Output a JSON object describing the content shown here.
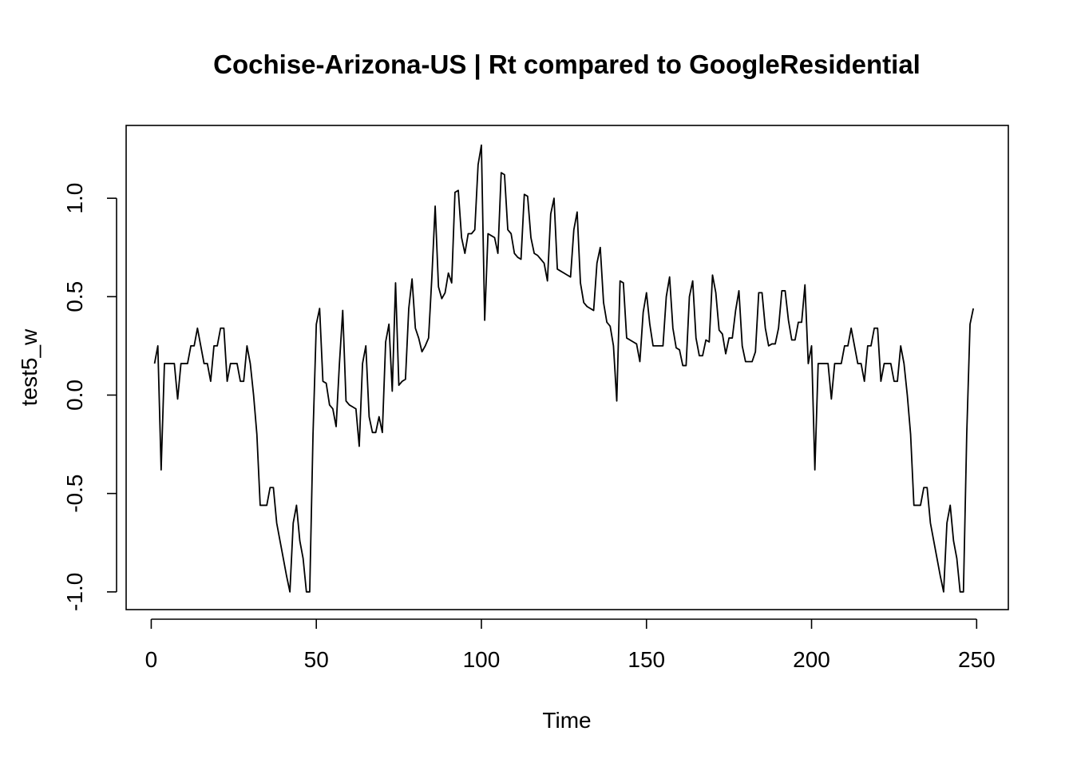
{
  "chart_data": {
    "type": "line",
    "title": "Cochise-Arizona-US | Rt compared to GoogleResidential",
    "xlabel": "Time",
    "ylabel": "test5_w",
    "xlim": [
      -7.6,
      259.6
    ],
    "ylim": [
      -1.09,
      1.37
    ],
    "x_ticks": [
      0,
      50,
      100,
      150,
      200,
      250
    ],
    "x_tick_labels": [
      "0",
      "50",
      "100",
      "150",
      "200",
      "250"
    ],
    "y_ticks": [
      -1.0,
      -0.5,
      0.0,
      0.5,
      1.0
    ],
    "y_tick_labels": [
      "-1.0",
      "-0.5",
      "0.0",
      "0.5",
      "1.0"
    ],
    "grid": false,
    "legend": "none",
    "line_color": "#000000",
    "series": [
      {
        "x_start": 1,
        "values": [
          0.16,
          0.25,
          -0.38,
          0.16,
          0.16,
          0.16,
          0.16,
          -0.02,
          0.16,
          0.16,
          0.16,
          0.25,
          0.25,
          0.34,
          0.25,
          0.16,
          0.16,
          0.07,
          0.25,
          0.25,
          0.34,
          0.34,
          0.07,
          0.16,
          0.16,
          0.16,
          0.07,
          0.07,
          0.25,
          0.16,
          0.0,
          -0.2,
          -0.56,
          -0.56,
          -0.56,
          -0.47,
          -0.47,
          -0.65,
          -0.74,
          -0.83,
          -0.92,
          -1.0,
          -0.65,
          -0.56,
          -0.74,
          -0.83,
          -1.0,
          -1.0,
          -0.2,
          0.36,
          0.44,
          0.07,
          0.06,
          -0.05,
          -0.07,
          -0.16,
          0.16,
          0.43,
          -0.03,
          -0.05,
          -0.06,
          -0.07,
          -0.26,
          0.16,
          0.25,
          -0.11,
          -0.19,
          -0.19,
          -0.11,
          -0.19,
          0.27,
          0.36,
          0.02,
          0.57,
          0.05,
          0.07,
          0.08,
          0.44,
          0.59,
          0.34,
          0.29,
          0.22,
          0.25,
          0.29,
          0.6,
          0.96,
          0.55,
          0.49,
          0.52,
          0.62,
          0.57,
          1.03,
          1.04,
          0.8,
          0.72,
          0.82,
          0.82,
          0.84,
          1.17,
          1.27,
          0.38,
          0.82,
          0.81,
          0.8,
          0.72,
          1.13,
          1.12,
          0.84,
          0.82,
          0.72,
          0.7,
          0.69,
          1.02,
          1.01,
          0.8,
          0.72,
          0.71,
          0.69,
          0.67,
          0.58,
          0.92,
          1.0,
          0.64,
          0.63,
          0.62,
          0.61,
          0.6,
          0.84,
          0.93,
          0.57,
          0.47,
          0.45,
          0.44,
          0.43,
          0.67,
          0.75,
          0.47,
          0.37,
          0.35,
          0.25,
          -0.03,
          0.58,
          0.57,
          0.29,
          0.28,
          0.27,
          0.26,
          0.17,
          0.42,
          0.52,
          0.36,
          0.25,
          0.25,
          0.25,
          0.25,
          0.5,
          0.6,
          0.34,
          0.24,
          0.23,
          0.15,
          0.15,
          0.5,
          0.58,
          0.29,
          0.2,
          0.2,
          0.28,
          0.27,
          0.61,
          0.52,
          0.33,
          0.31,
          0.21,
          0.29,
          0.29,
          0.43,
          0.53,
          0.25,
          0.17,
          0.17,
          0.17,
          0.22,
          0.52,
          0.52,
          0.34,
          0.25,
          0.26,
          0.26,
          0.34,
          0.53,
          0.53,
          0.38,
          0.28,
          0.28,
          0.37,
          0.37,
          0.56,
          0.16,
          0.25,
          -0.38,
          0.16,
          0.16,
          0.16,
          0.16,
          -0.02,
          0.16,
          0.16,
          0.16,
          0.25,
          0.25,
          0.34,
          0.25,
          0.16,
          0.16,
          0.07,
          0.25,
          0.25,
          0.34,
          0.34,
          0.07,
          0.16,
          0.16,
          0.16,
          0.07,
          0.07,
          0.25,
          0.16,
          0.0,
          -0.2,
          -0.56,
          -0.56,
          -0.56,
          -0.47,
          -0.47,
          -0.65,
          -0.74,
          -0.83,
          -0.92,
          -1.0,
          -0.65,
          -0.56,
          -0.74,
          -0.83,
          -1.0,
          -1.0,
          -0.2,
          0.36,
          0.44
        ]
      }
    ]
  }
}
